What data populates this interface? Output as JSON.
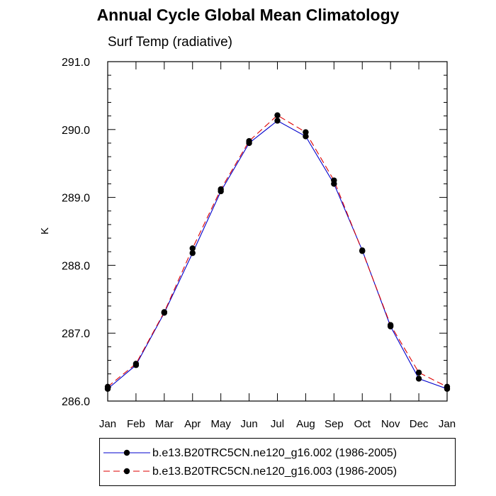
{
  "chart_data": {
    "type": "line",
    "title": "Annual Cycle Global Mean Climatology",
    "subtitle": "Surf Temp (radiative)",
    "ylabel": "K",
    "xlabel": "",
    "categories": [
      "Jan",
      "Feb",
      "Mar",
      "Apr",
      "May",
      "Jun",
      "Jul",
      "Aug",
      "Sep",
      "Oct",
      "Nov",
      "Dec",
      "Jan"
    ],
    "ylim": [
      286.0,
      291.0
    ],
    "yticks": [
      "286.0",
      "287.0",
      "288.0",
      "289.0",
      "290.0",
      "291.0"
    ],
    "grid": false,
    "legend_position": "bottom",
    "series": [
      {
        "name": "b.e13.B20TRC5CN.ne120_g16.002 (1986-2005)",
        "color": "#0000cc",
        "dash": "solid",
        "values": [
          286.18,
          286.53,
          287.3,
          288.18,
          289.09,
          289.8,
          290.13,
          289.9,
          289.2,
          288.22,
          287.1,
          286.33,
          286.18
        ]
      },
      {
        "name": "b.e13.B20TRC5CN.ne120_g16.003 (1986-2005)",
        "color": "#dd0000",
        "dash": "dashed",
        "values": [
          286.21,
          286.55,
          287.31,
          288.25,
          289.12,
          289.83,
          290.21,
          289.96,
          289.25,
          288.21,
          287.12,
          286.42,
          286.21
        ]
      }
    ]
  }
}
